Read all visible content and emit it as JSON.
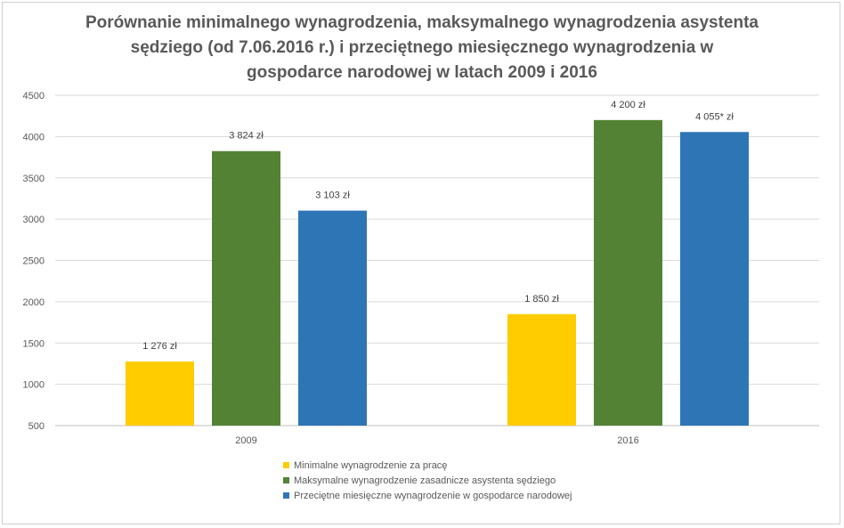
{
  "chart_data": {
    "type": "bar",
    "title": "Porównanie minimalnego wynagrodzenia, maksymalnego wynagrodzenia asystenta sędziego (od 7.06.2016 r.) i przeciętnego miesięcznego wynagrodzenia w gospodarce narodowej w latach 2009 i 2016",
    "title_lines": [
      "Porównanie minimalnego wynagrodzenia, maksymalnego wynagrodzenia asystenta",
      "sędziego (od 7.06.2016 r.) i przeciętnego miesięcznego wynagrodzenia w",
      "gospodarce narodowej w latach 2009 i 2016"
    ],
    "categories": [
      "2009",
      "2016"
    ],
    "series": [
      {
        "name": "Minimalne wynagrodzenie za pracę",
        "color": "#FFCC00",
        "values": [
          1276,
          1850
        ],
        "labels": [
          "1 276 zł",
          "1 850 zł"
        ]
      },
      {
        "name": "Maksymalne wynagrodzenie zasadnicze asystenta sędziego",
        "color": "#548235",
        "values": [
          3824,
          4200
        ],
        "labels": [
          "3 824 zł",
          "4 200 zł"
        ]
      },
      {
        "name": "Przeciętne miesięczne wynagrodzenie w gospodarce narodowej",
        "color": "#2E75B6",
        "values": [
          3103,
          4055
        ],
        "labels": [
          "3 103 zł",
          "4 055* zł"
        ]
      }
    ],
    "ylim": [
      500,
      4500
    ],
    "yticks": [
      500,
      1000,
      1500,
      2000,
      2500,
      3000,
      3500,
      4000,
      4500
    ],
    "grid": true,
    "legend_position": "bottom",
    "xlabel": "",
    "ylabel": ""
  }
}
